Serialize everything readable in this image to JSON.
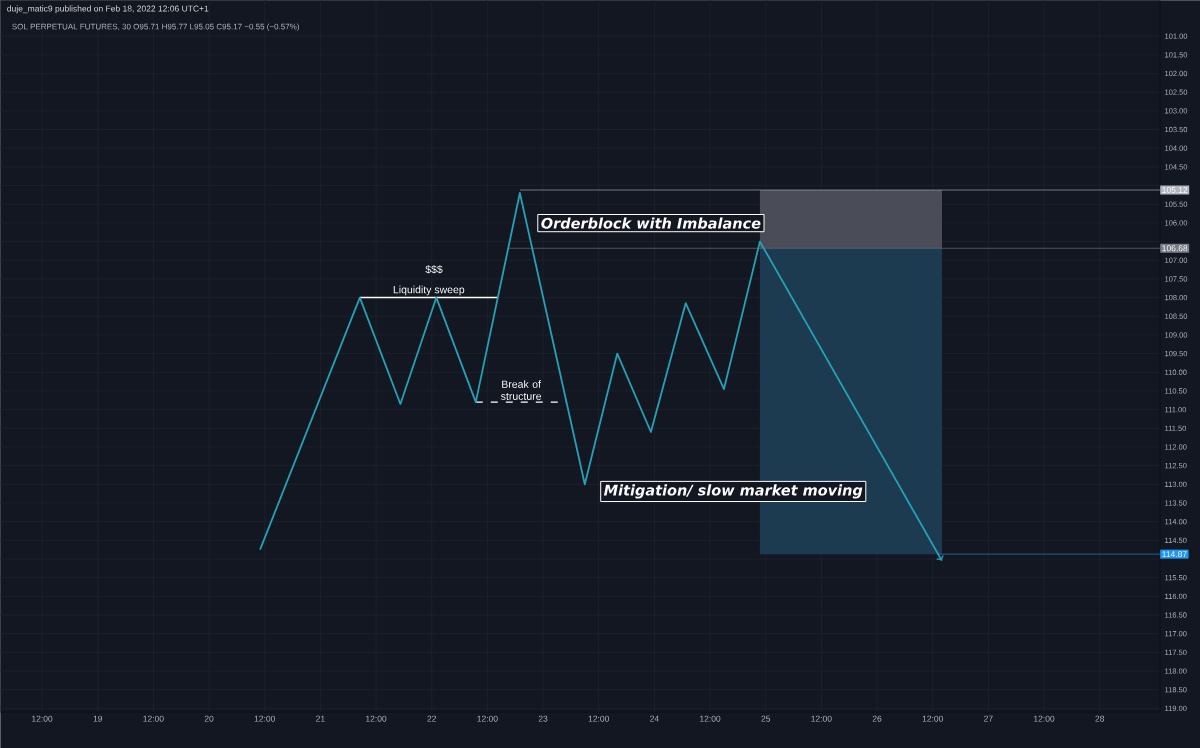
{
  "chart_data": {
    "type": "line",
    "title": "duje_matic9 published on Feb 18, 2022 12:06 UTC+1",
    "subtitle": "SOL PERPETUAL FUTURES, 30  O95.71 H95.77 L95.05 C95.17 −0.55 (−0.57%)",
    "series": [
      {
        "color": "#26a0b4",
        "x": [
          "2022-02-20T11:00",
          "2022-02-21T08:30",
          "2022-02-21T17:15",
          "2022-02-22T01:00",
          "2022-02-22T09:30",
          "2022-02-22T19:00",
          "2022-02-23T09:00",
          "2022-02-23T16:00",
          "2022-02-23T23:15",
          "2022-02-24T06:45",
          "2022-02-24T15:00",
          "2022-02-24T22:45",
          "2022-02-26T14:00"
        ],
        "values": [
          114.75,
          108.0,
          110.85,
          108.0,
          110.8,
          105.2,
          113.0,
          109.5,
          111.6,
          108.15,
          110.45,
          106.5,
          115.05
        ]
      }
    ],
    "xlim": [
      "2022-02-18T03:00",
      "2022-02-28T13:00"
    ],
    "ylim": [
      119.1,
      100.04
    ],
    "xticks": [
      {
        "value": "2022-02-18T12:00",
        "label": "12:00"
      },
      {
        "value": "2022-02-19",
        "label": "19"
      },
      {
        "value": "2022-02-19T12:00",
        "label": "12:00"
      },
      {
        "value": "2022-02-20",
        "label": "20"
      },
      {
        "value": "2022-02-20T12:00",
        "label": "12:00"
      },
      {
        "value": "2022-02-21",
        "label": "21"
      },
      {
        "value": "2022-02-21T12:00",
        "label": "12:00"
      },
      {
        "value": "2022-02-22",
        "label": "22"
      },
      {
        "value": "2022-02-22T12:00",
        "label": "12:00"
      },
      {
        "value": "2022-02-23",
        "label": "23"
      },
      {
        "value": "2022-02-23T12:00",
        "label": "12:00"
      },
      {
        "value": "2022-02-24",
        "label": "24"
      },
      {
        "value": "2022-02-24T12:00",
        "label": "12:00"
      },
      {
        "value": "2022-02-25",
        "label": "25"
      },
      {
        "value": "2022-02-25T12:00",
        "label": "12:00"
      },
      {
        "value": "2022-02-26",
        "label": "26"
      },
      {
        "value": "2022-02-26T12:00",
        "label": "12:00"
      },
      {
        "value": "2022-02-27",
        "label": "27"
      },
      {
        "value": "2022-02-27T12:00",
        "label": "12:00"
      },
      {
        "value": "2022-02-28",
        "label": "28"
      }
    ],
    "yticks": [
      {
        "value": 101,
        "label": "101.00"
      },
      {
        "value": 101.5,
        "label": "101.50"
      },
      {
        "value": 102,
        "label": "102.00"
      },
      {
        "value": 102.5,
        "label": "102.50"
      },
      {
        "value": 103,
        "label": "103.00"
      },
      {
        "value": 103.5,
        "label": "103.50"
      },
      {
        "value": 104,
        "label": "104.00"
      },
      {
        "value": 104.5,
        "label": "104.50"
      },
      {
        "value": 105,
        "label": null
      },
      {
        "value": 105.5,
        "label": "105.50"
      },
      {
        "value": 106,
        "label": "106.00"
      },
      {
        "value": 106.5,
        "label": null
      },
      {
        "value": 107,
        "label": "107.00"
      },
      {
        "value": 107.5,
        "label": "107.50"
      },
      {
        "value": 108,
        "label": "108.00"
      },
      {
        "value": 108.5,
        "label": "108.50"
      },
      {
        "value": 109,
        "label": "109.00"
      },
      {
        "value": 109.5,
        "label": "109.50"
      },
      {
        "value": 110,
        "label": "110.00"
      },
      {
        "value": 110.5,
        "label": "110.50"
      },
      {
        "value": 111,
        "label": "111.00"
      },
      {
        "value": 111.5,
        "label": "111.50"
      },
      {
        "value": 112,
        "label": "112.00"
      },
      {
        "value": 112.5,
        "label": "112.50"
      },
      {
        "value": 113,
        "label": "113.00"
      },
      {
        "value": 113.5,
        "label": "113.50"
      },
      {
        "value": 114,
        "label": "114.00"
      },
      {
        "value": 114.5,
        "label": "114.50"
      },
      {
        "value": 115,
        "label": null
      },
      {
        "value": 115.5,
        "label": "115.50"
      },
      {
        "value": 116,
        "label": "116.00"
      },
      {
        "value": 116.5,
        "label": "116.50"
      },
      {
        "value": 117,
        "label": "117.00"
      },
      {
        "value": 117.5,
        "label": "117.50"
      },
      {
        "value": 118,
        "label": "118.00"
      },
      {
        "value": 118.5,
        "label": "118.50"
      },
      {
        "value": 119,
        "label": "119.00"
      }
    ],
    "grid": true,
    "marker": "none",
    "line_style": "solid",
    "bands": [
      {
        "axis": "y",
        "from": 105.12,
        "to": 106.68,
        "color": "#4a4d57"
      },
      {
        "axis": "y",
        "from": 106.68,
        "to": 114.87,
        "color": "#1c3a50"
      }
    ],
    "ref_lines": [
      {
        "axis": "y",
        "value": 105.12,
        "label": "105.12",
        "color": "#b2b5be"
      },
      {
        "axis": "y",
        "value": 106.68,
        "label": "106.68",
        "color": "#787b86"
      },
      {
        "axis": "y",
        "value": 114.87,
        "label": "114.87",
        "color": "#2196f3"
      },
      {
        "axis": "y",
        "value": 108.0,
        "label": "Liquidity sweep",
        "color": "#ffffff"
      },
      {
        "axis": "y",
        "value": 110.8,
        "label": "Break of structure",
        "color": "#ffffff",
        "line_style": "dashed"
      }
    ],
    "annotations": [
      "$$$",
      "Orderblock with Imbalance",
      "Mitigation/ slow market moving"
    ]
  }
}
